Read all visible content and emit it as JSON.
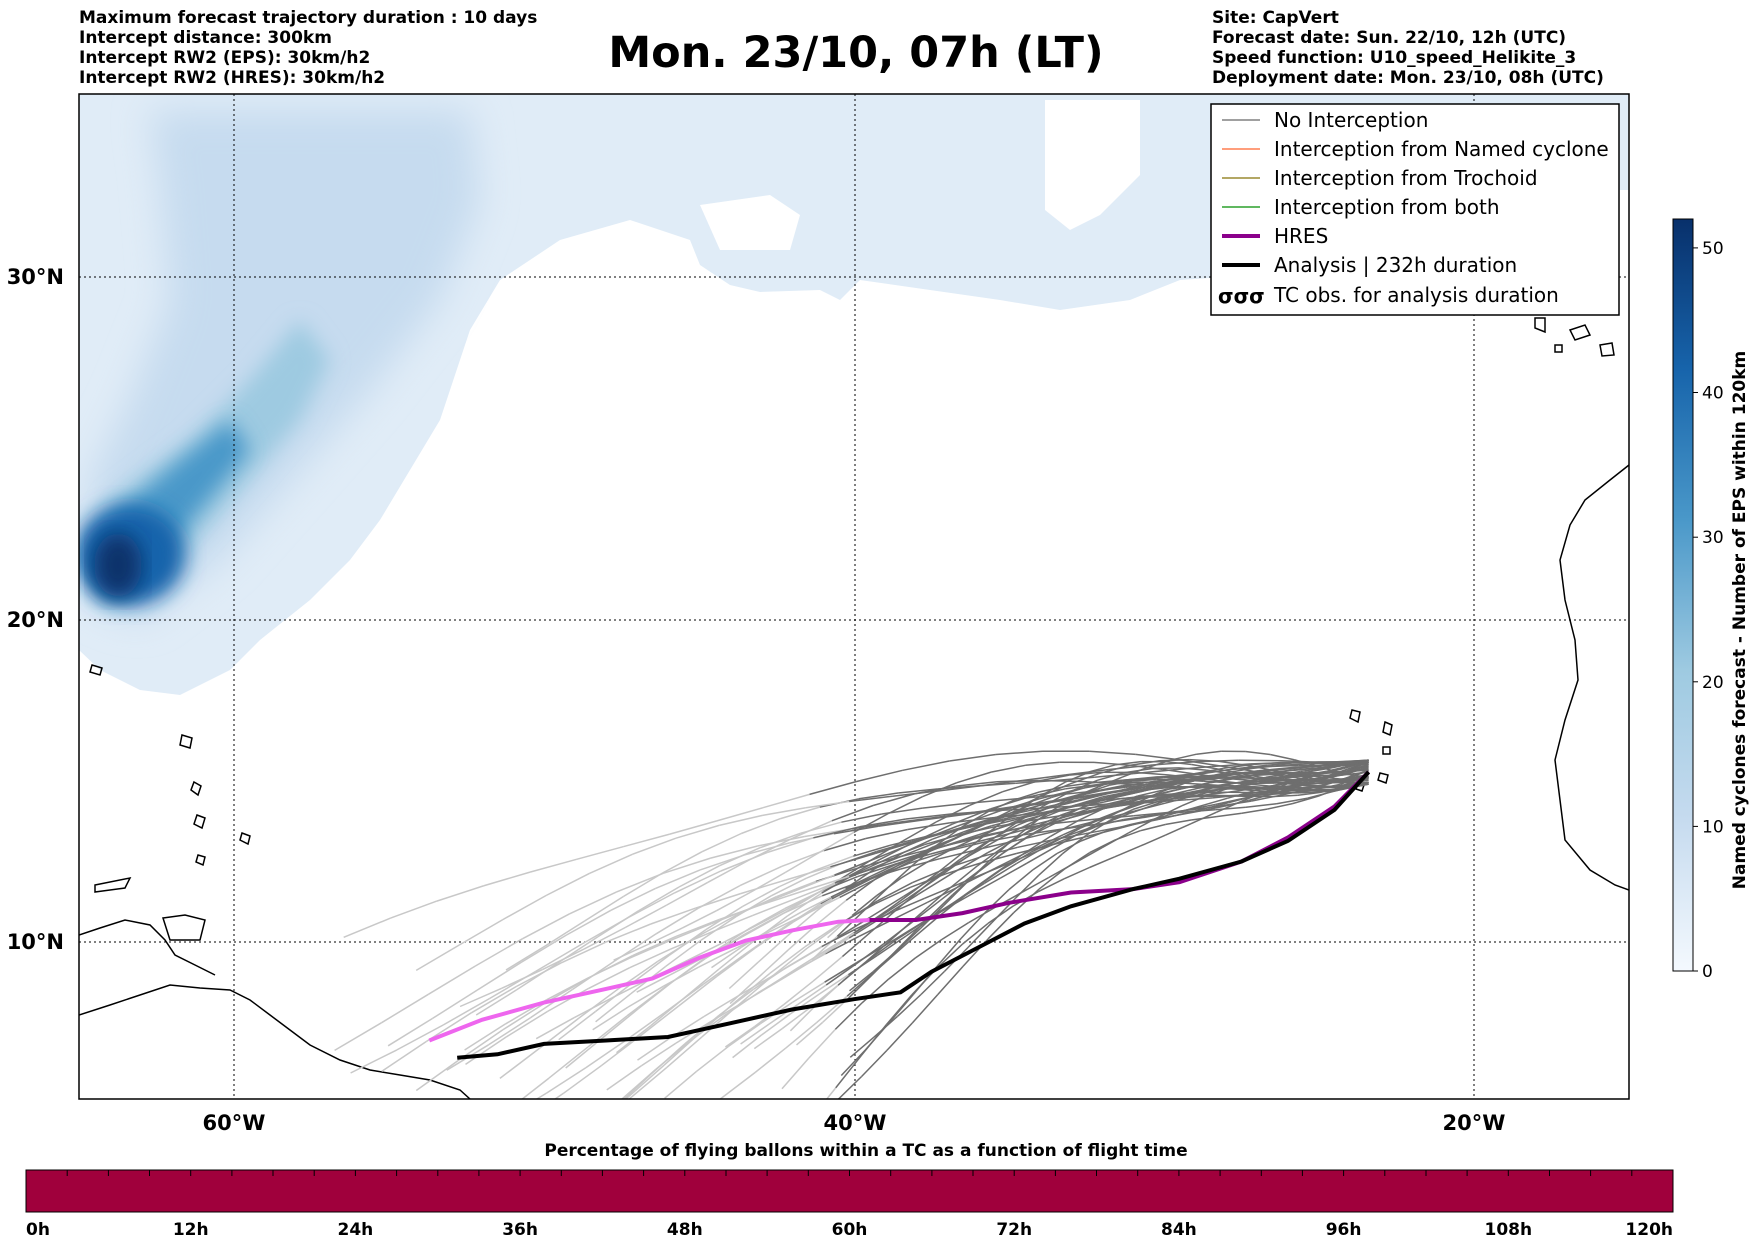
{
  "header_left": [
    "Maximum forecast trajectory duration : 10 days",
    "Intercept distance: 300km",
    "Intercept RW2 (EPS):  30km/h2",
    "Intercept RW2 (HRES): 30km/h2"
  ],
  "title": "Mon. 23/10, 07h (LT)",
  "header_right": [
    "Site: CapVert",
    "Forecast date: Sun. 22/10, 12h (UTC)",
    "Speed function: U10_speed_Helikite_3",
    "Deployment date: Mon. 23/10, 08h (UTC)"
  ],
  "map": {
    "lat_ticks": [
      "30°N",
      "20°N",
      "10°N"
    ],
    "lon_ticks": [
      "60°W",
      "40°W",
      "20°W"
    ]
  },
  "legend": [
    {
      "label": "No Interception",
      "color": "#808080",
      "style": "thin"
    },
    {
      "label": "Interception from Named cyclone",
      "color": "#ff7f50",
      "style": "thin"
    },
    {
      "label": "Interception from Trochoid",
      "color": "#9a8a30",
      "style": "thin"
    },
    {
      "label": "Interception from both",
      "color": "#2ca02c",
      "style": "thin"
    },
    {
      "label": "HRES",
      "color": "#8b008b",
      "style": "thick"
    },
    {
      "label": "Analysis | 232h duration",
      "color": "#000000",
      "style": "thick"
    },
    {
      "label": "TC obs. for analysis duration",
      "color": "#000000",
      "style": "symbol",
      "symbol": "σσσ"
    }
  ],
  "colorbar": {
    "label": "Named cyclones forecast - Number of EPS within 120km",
    "ticks": [
      "0",
      "10",
      "20",
      "30",
      "40",
      "50"
    ],
    "max": 52
  },
  "timeline": {
    "title": "Percentage of flying ballons within a TC as a function of flight time",
    "ticks": [
      "0h",
      "12h",
      "24h",
      "36h",
      "48h",
      "60h",
      "72h",
      "84h",
      "96h",
      "108h",
      "120h"
    ],
    "color": "#a0003c"
  },
  "chart_data": {
    "type": "map",
    "region": {
      "lon_range": [
        -65,
        -15
      ],
      "lat_range": [
        5.4,
        34.6
      ]
    },
    "site": {
      "name": "CapVert",
      "lon": -23.4,
      "lat": 14.9
    },
    "hres_track": {
      "color": "#8b008b",
      "points": [
        [
          -23.4,
          14.9
        ],
        [
          -24.5,
          13.9
        ],
        [
          -26,
          13
        ],
        [
          -27.5,
          12.3
        ],
        [
          -29.5,
          11.7
        ],
        [
          -31,
          11.5
        ],
        [
          -33,
          11.4
        ],
        [
          -35,
          11.1
        ],
        [
          -36.5,
          10.8
        ],
        [
          -38,
          10.6
        ],
        [
          -39.5,
          10.6
        ],
        [
          -40.5,
          10.55
        ],
        [
          -42,
          10.3
        ],
        [
          -43.5,
          10
        ],
        [
          -45,
          9.5
        ],
        [
          -46.5,
          8.9
        ],
        [
          -48,
          8.6
        ],
        [
          -50,
          8.2
        ],
        [
          -52,
          7.7
        ],
        [
          -53.7,
          7.1
        ]
      ]
    },
    "analysis_track": {
      "color": "#000000",
      "duration": "232h",
      "points": [
        [
          -23.4,
          14.9
        ],
        [
          -24.5,
          13.8
        ],
        [
          -26,
          12.9
        ],
        [
          -27.5,
          12.3
        ],
        [
          -29.5,
          11.8
        ],
        [
          -31,
          11.5
        ],
        [
          -33,
          11.0
        ],
        [
          -34.5,
          10.5
        ],
        [
          -36,
          9.8
        ],
        [
          -37.5,
          9.1
        ],
        [
          -38.5,
          8.5
        ],
        [
          -40,
          8.3
        ],
        [
          -42,
          8.0
        ],
        [
          -44,
          7.6
        ],
        [
          -46,
          7.2
        ],
        [
          -48,
          7.1
        ],
        [
          -50,
          7.0
        ],
        [
          -51.5,
          6.7
        ],
        [
          -52.8,
          6.6
        ]
      ]
    }
  }
}
